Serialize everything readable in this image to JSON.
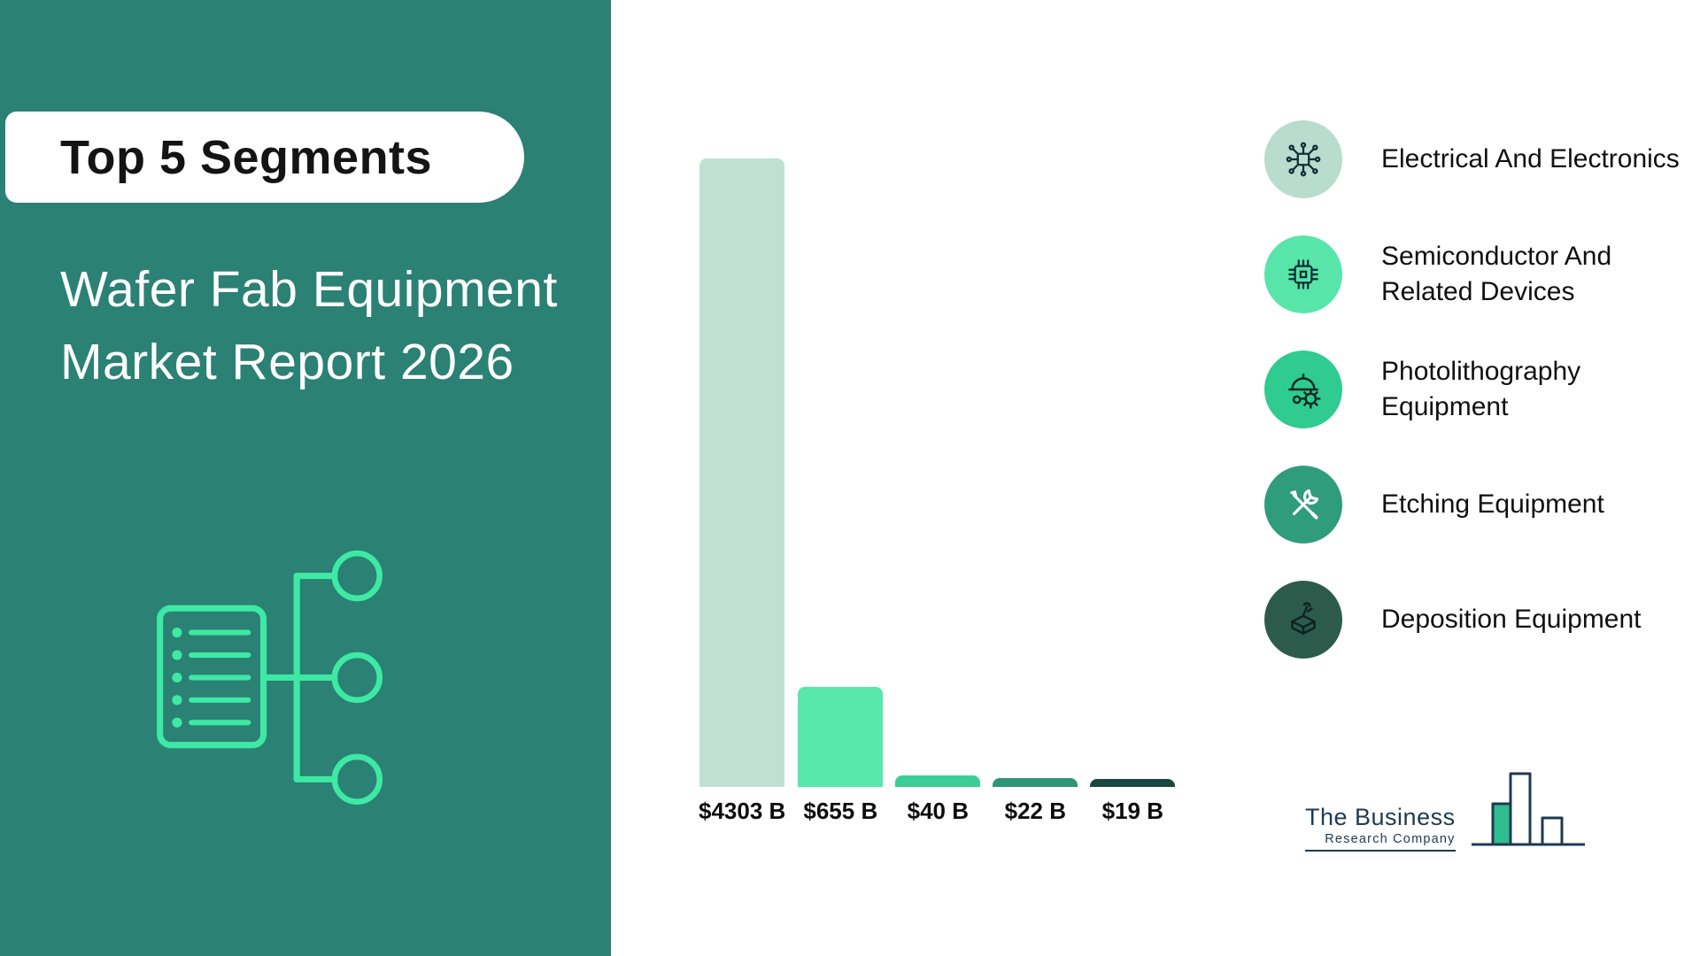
{
  "panel": {
    "badge": "Top 5 Segments",
    "title_line1": "Wafer Fab Equipment",
    "title_line2": "Market Report 2026"
  },
  "chart_data": {
    "type": "bar",
    "title": "Top 5 Segments — Wafer Fab Equipment Market Report 2026",
    "categories": [
      "Electrical And Electronics",
      "Semiconductor And Related Devices",
      "Photolithography Equipment",
      "Etching Equipment",
      "Deposition Equipment"
    ],
    "values": [
      4303,
      655,
      40,
      22,
      19
    ],
    "value_labels": [
      "$4303 B",
      "$655 B",
      "$40 B",
      "$22 B",
      "$19 B"
    ],
    "colors": [
      "#c0e0d2",
      "#59e7ab",
      "#3bcd96",
      "#2f9678",
      "#19493e"
    ],
    "ylim": [
      0,
      4303
    ],
    "grid": false,
    "legend_position": "right"
  },
  "legend": {
    "items": [
      {
        "label": "Electrical And Electronics",
        "line1": "Electrical And Electronics",
        "line2": "",
        "icon": "circuit-icon",
        "color": "#b8dcce"
      },
      {
        "label": "Semiconductor And Related Devices",
        "line1": "Semiconductor And",
        "line2": "Related Devices",
        "icon": "chip-icon",
        "color": "#57e5a9"
      },
      {
        "label": "Photolithography Equipment",
        "line1": "Photolithography",
        "line2": "Equipment",
        "icon": "hardhat-gear-icon",
        "color": "#2fcb90"
      },
      {
        "label": "Etching Equipment",
        "line1": "Etching Equipment",
        "line2": "",
        "icon": "tools-icon",
        "color": "#2f9c7c"
      },
      {
        "label": "Deposition Equipment",
        "line1": "Deposition Equipment",
        "line2": "",
        "icon": "deposit-box-icon",
        "color": "#2c5b4b"
      }
    ]
  },
  "logo": {
    "line1": "The Business",
    "line2": "Research Company"
  }
}
